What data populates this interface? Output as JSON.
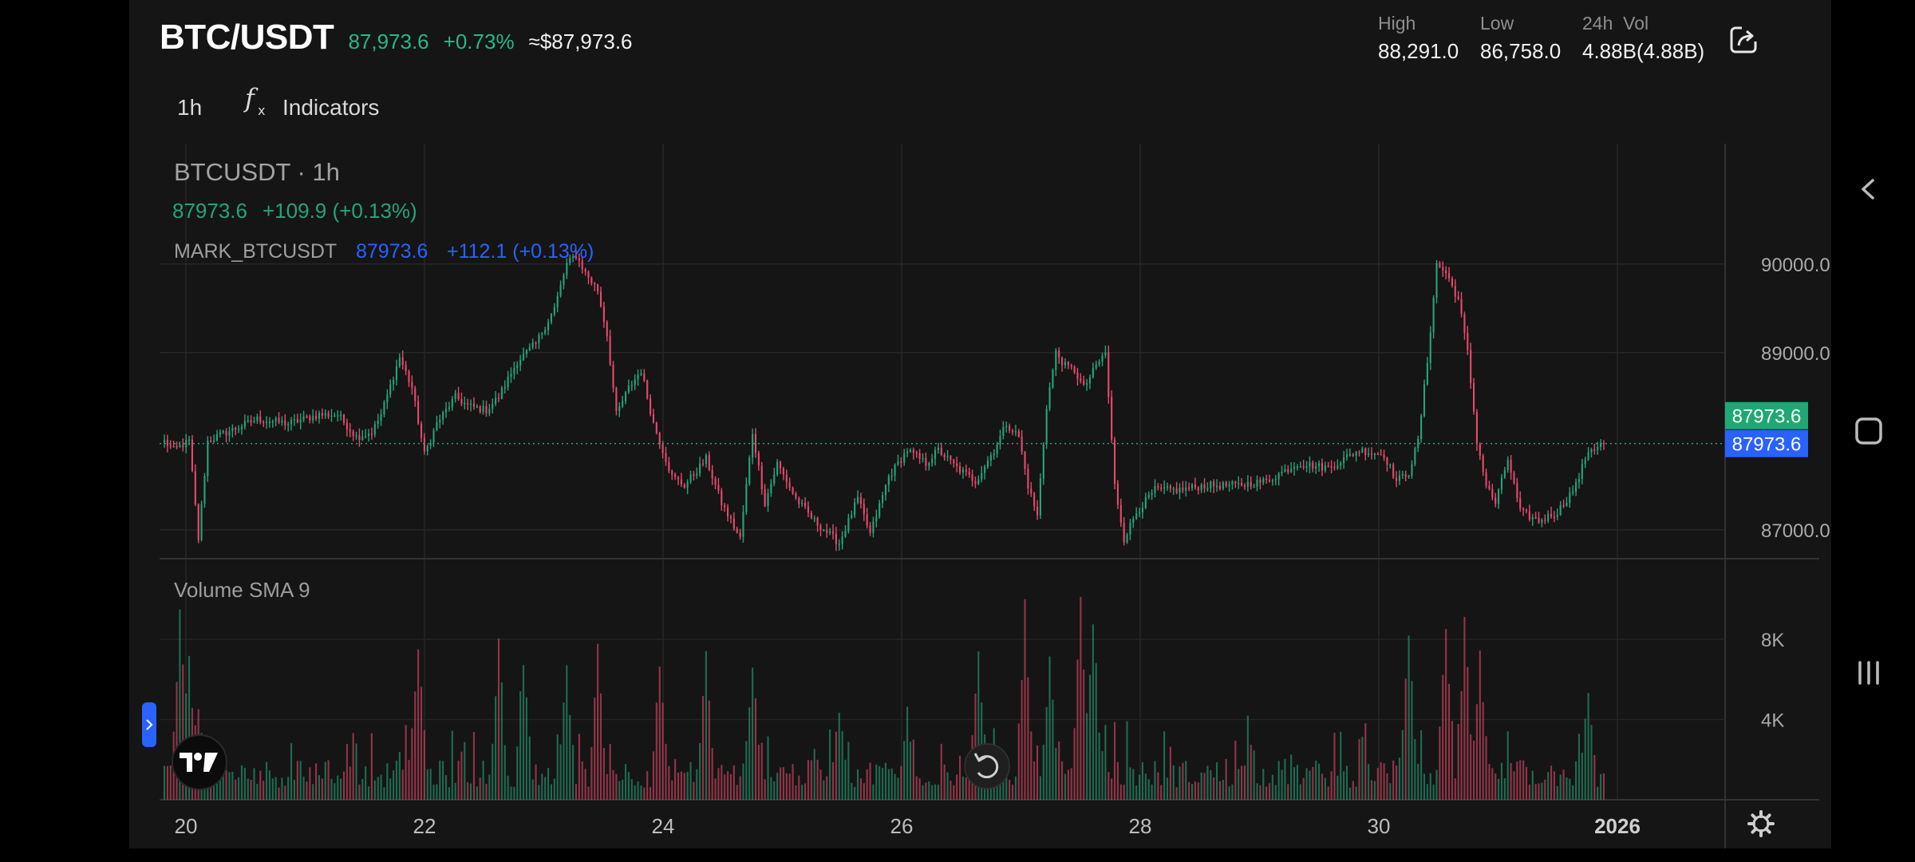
{
  "header": {
    "pair": "BTC/USDT",
    "last_price": "87,973.6",
    "change_pct": "+0.73%",
    "usd_price": "≈$87,973.6",
    "stats": [
      {
        "label": "High",
        "value": "88,291.0"
      },
      {
        "label": "Low",
        "value": "86,758.0"
      },
      {
        "label": "24h  Vol",
        "value": "4.88B(4.88B)"
      }
    ],
    "share_icon": "share-icon"
  },
  "toolbar": {
    "interval": "1h",
    "indicators_icon": "fx-icon",
    "indicators_label": "Indicators"
  },
  "legend": {
    "symbol": "BTCUSDT · 1h",
    "price": "87973.6",
    "change": "+109.9 (+0.13%)",
    "mark_label": "MARK_BTCUSDT",
    "mark_price": "87973.6",
    "mark_change": "+112.1 (+0.13%)",
    "volume_label": "Volume SMA 9"
  },
  "colors": {
    "up": "#26a37a",
    "down": "#e5496b",
    "mark_blue": "#2962ff",
    "price_tag": "#1fa875"
  },
  "chart_data": [
    {
      "type": "candlestick",
      "series": [
        {
          "name": "BTCUSDT · 1h"
        }
      ],
      "y_ticks": [
        "90000.0",
        "89000.0",
        "87000.0"
      ],
      "ylim": [
        86500,
        90600
      ],
      "x_ticks": [
        "20",
        "22",
        "24",
        "26",
        "28",
        "30",
        "2026"
      ],
      "x_dates": [
        "2025-12-20",
        "2025-12-22",
        "2025-12-24",
        "2025-12-26",
        "2025-12-28",
        "2025-12-30",
        "2026-01-01"
      ],
      "last_price_label": "87973.6",
      "mark_price_label": "87973.6",
      "grid": true,
      "anchors": [
        [
          0,
          88000
        ],
        [
          3,
          87900
        ],
        [
          8,
          88000
        ],
        [
          11,
          86900
        ],
        [
          14,
          88000
        ],
        [
          20,
          88100
        ],
        [
          30,
          88250
        ],
        [
          40,
          88200
        ],
        [
          50,
          88300
        ],
        [
          56,
          88300
        ],
        [
          62,
          88050
        ],
        [
          67,
          88100
        ],
        [
          70,
          88300
        ],
        [
          76,
          88950
        ],
        [
          80,
          88600
        ],
        [
          84,
          87850
        ],
        [
          88,
          88200
        ],
        [
          94,
          88500
        ],
        [
          98,
          88400
        ],
        [
          104,
          88350
        ],
        [
          108,
          88500
        ],
        [
          114,
          88900
        ],
        [
          120,
          89100
        ],
        [
          126,
          89500
        ],
        [
          130,
          90000
        ],
        [
          133,
          90100
        ],
        [
          136,
          89900
        ],
        [
          140,
          89700
        ],
        [
          143,
          89200
        ],
        [
          146,
          88300
        ],
        [
          150,
          88600
        ],
        [
          154,
          88800
        ],
        [
          158,
          88200
        ],
        [
          164,
          87600
        ],
        [
          168,
          87500
        ],
        [
          175,
          87800
        ],
        [
          180,
          87300
        ],
        [
          186,
          86900
        ],
        [
          190,
          88100
        ],
        [
          194,
          87300
        ],
        [
          198,
          87750
        ],
        [
          204,
          87350
        ],
        [
          210,
          87100
        ],
        [
          218,
          86850
        ],
        [
          224,
          87350
        ],
        [
          228,
          86950
        ],
        [
          234,
          87600
        ],
        [
          240,
          87900
        ],
        [
          246,
          87750
        ],
        [
          250,
          87900
        ],
        [
          256,
          87700
        ],
        [
          262,
          87550
        ],
        [
          268,
          87900
        ],
        [
          272,
          88200
        ],
        [
          276,
          88050
        ],
        [
          279,
          87500
        ],
        [
          282,
          87150
        ],
        [
          285,
          88400
        ],
        [
          288,
          89000
        ],
        [
          291,
          88850
        ],
        [
          294,
          88800
        ],
        [
          297,
          88600
        ],
        [
          301,
          88850
        ],
        [
          304,
          89000
        ],
        [
          307,
          87500
        ],
        [
          310,
          86900
        ],
        [
          314,
          87200
        ],
        [
          320,
          87450
        ],
        [
          328,
          87450
        ],
        [
          336,
          87500
        ],
        [
          346,
          87500
        ],
        [
          356,
          87550
        ],
        [
          366,
          87750
        ],
        [
          376,
          87700
        ],
        [
          386,
          87900
        ],
        [
          394,
          87850
        ],
        [
          398,
          87550
        ],
        [
          402,
          87650
        ],
        [
          405,
          88000
        ],
        [
          408,
          88900
        ],
        [
          411,
          90000
        ],
        [
          414,
          89900
        ],
        [
          418,
          89600
        ],
        [
          421,
          89000
        ],
        [
          424,
          88000
        ],
        [
          427,
          87500
        ],
        [
          430,
          87300
        ],
        [
          434,
          87800
        ],
        [
          438,
          87200
        ],
        [
          444,
          87100
        ],
        [
          450,
          87200
        ],
        [
          456,
          87500
        ],
        [
          460,
          87900
        ],
        [
          465,
          87974
        ]
      ],
      "total_candles": 466
    },
    {
      "type": "bar",
      "title": "Volume SMA 9",
      "y_ticks": [
        "8K",
        "4K"
      ],
      "ylim": [
        0,
        11500
      ],
      "peaks": [
        [
          5,
          10000
        ],
        [
          8,
          8000
        ],
        [
          11,
          5500
        ],
        [
          82,
          9000
        ],
        [
          108,
          8500
        ],
        [
          116,
          8000
        ],
        [
          130,
          7000
        ],
        [
          140,
          8000
        ],
        [
          160,
          7000
        ],
        [
          175,
          7800
        ],
        [
          190,
          7600
        ],
        [
          218,
          5000
        ],
        [
          240,
          5000
        ],
        [
          263,
          8500
        ],
        [
          278,
          10000
        ],
        [
          286,
          7500
        ],
        [
          296,
          11000
        ],
        [
          300,
          10000
        ],
        [
          402,
          9000
        ],
        [
          414,
          10000
        ],
        [
          420,
          9500
        ],
        [
          425,
          8000
        ],
        [
          460,
          6000
        ]
      ]
    }
  ]
}
